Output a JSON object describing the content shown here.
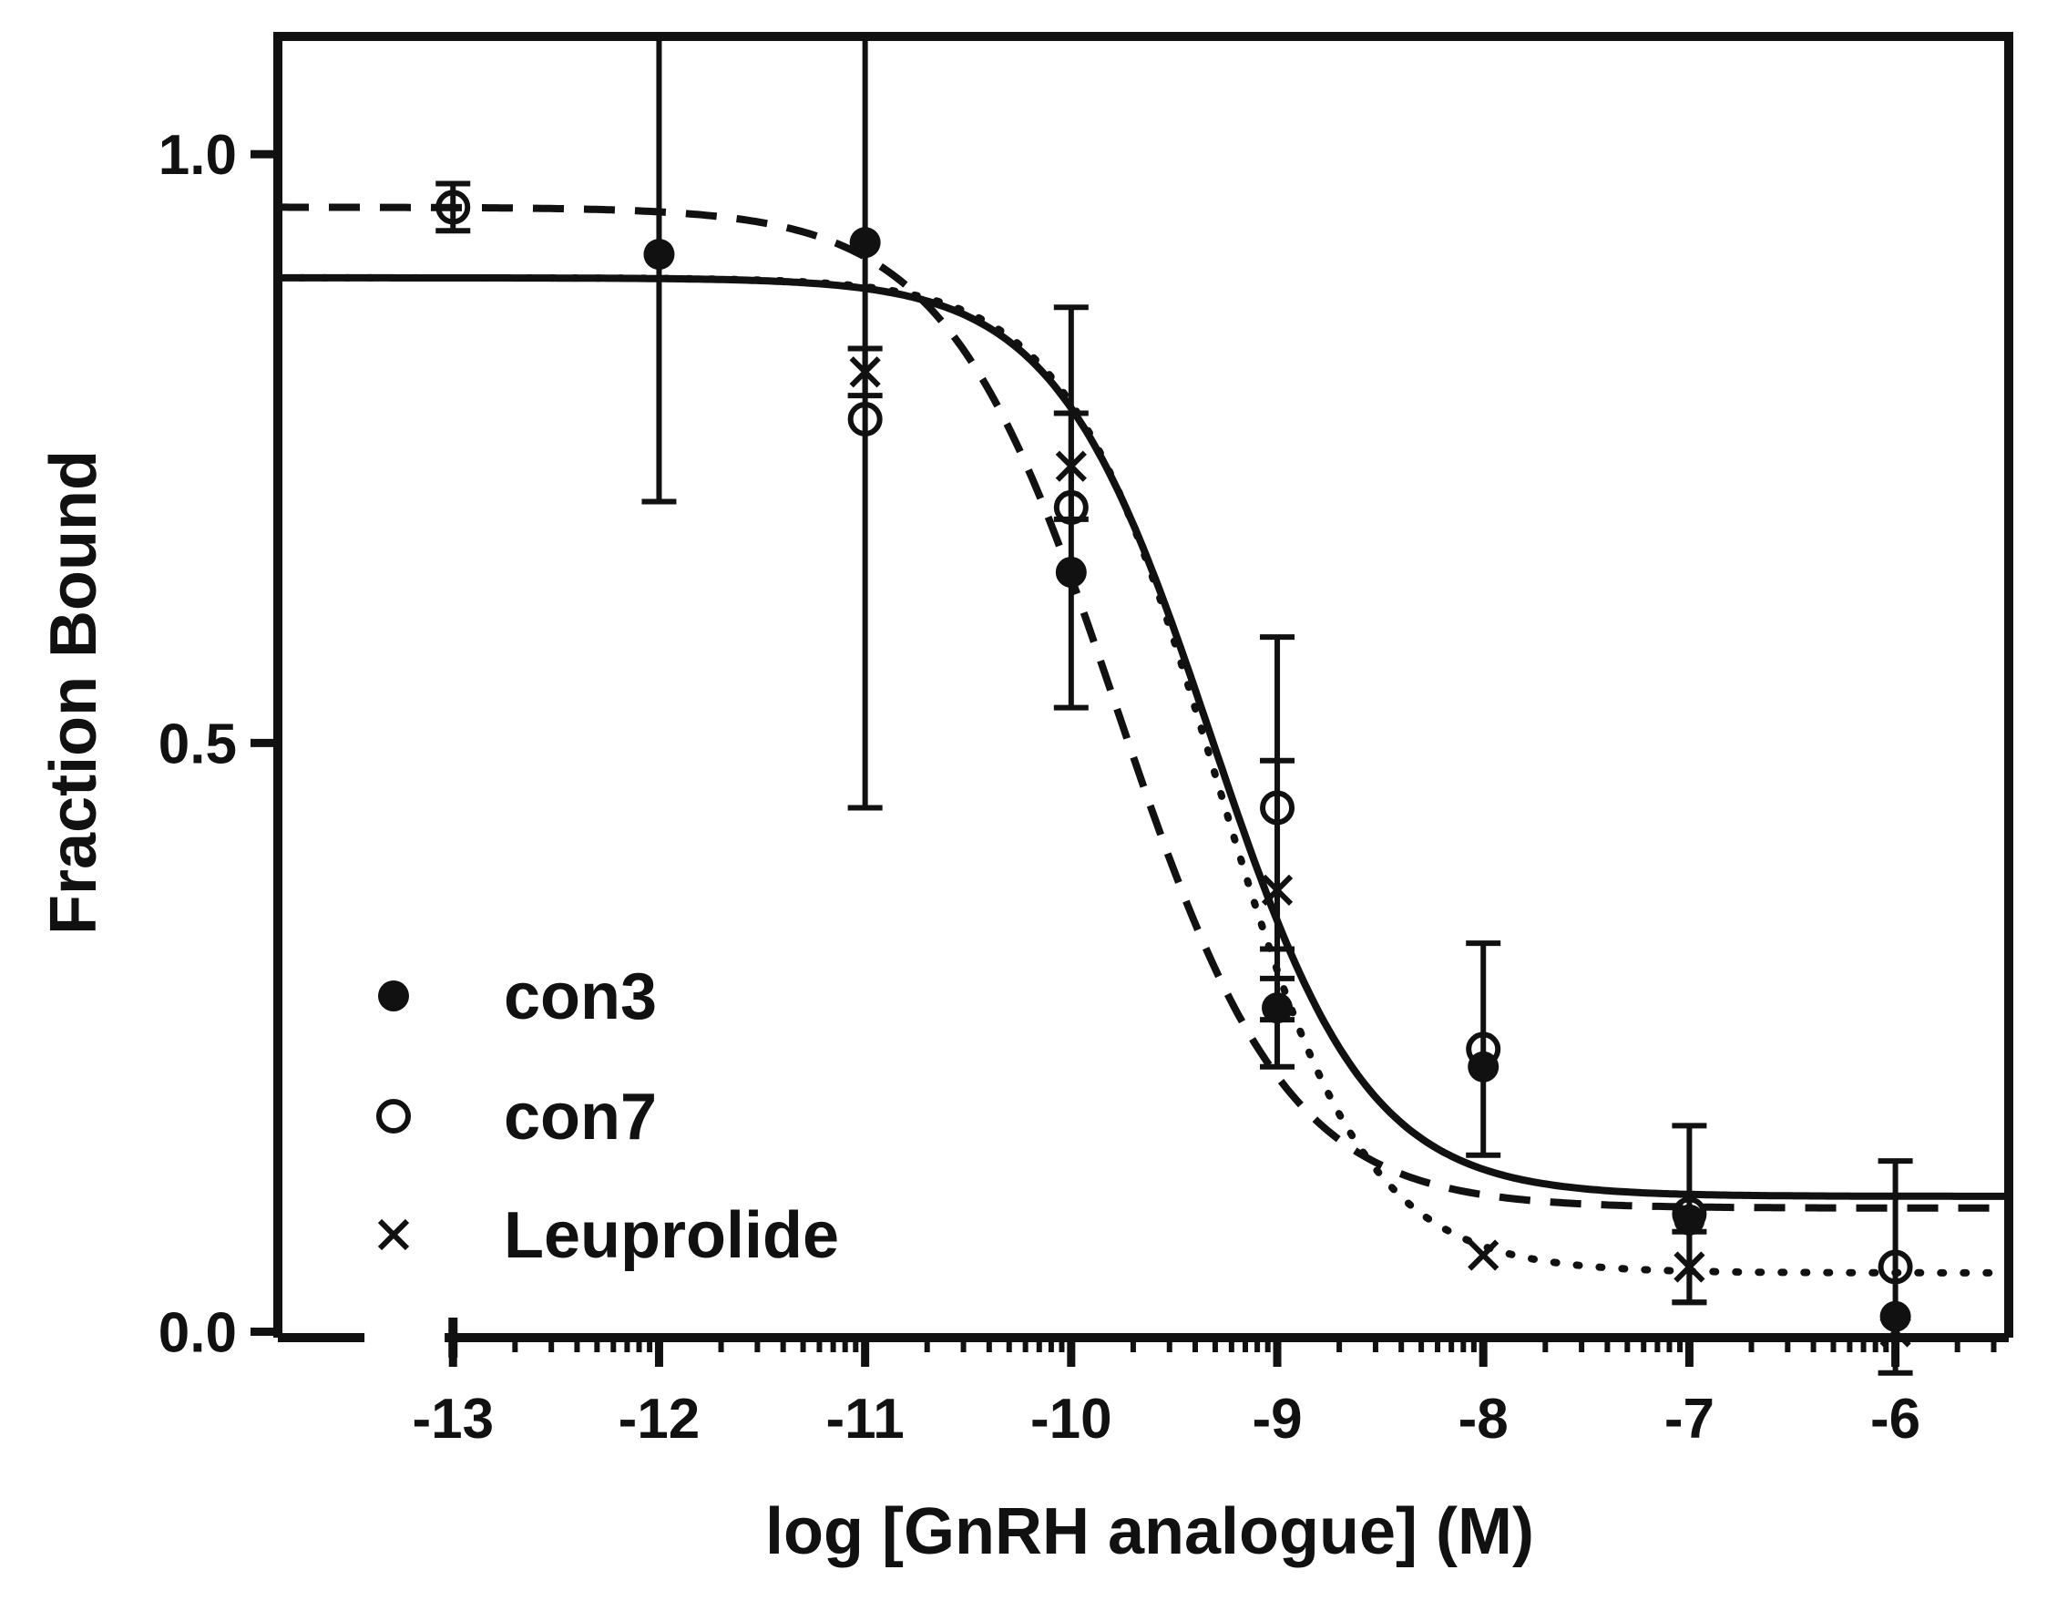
{
  "chart_data": {
    "type": "scatter",
    "title": "",
    "xlabel": "log [GnRH analogue] (M)",
    "ylabel": "Fraction Bound",
    "xlim": [
      -13.85,
      -5.45
    ],
    "ylim": [
      -0.005,
      1.1
    ],
    "x_axis_break_at": -13.35,
    "x_ticks": [
      -13,
      -12,
      -11,
      -10,
      -9,
      -8,
      -7,
      -6
    ],
    "x_tick_labels": [
      "-13",
      "-12",
      "-11",
      "-10",
      "-9",
      "-8",
      "-7",
      "-6"
    ],
    "y_ticks": [
      0.0,
      0.5,
      1.0
    ],
    "y_tick_labels": [
      "0.0",
      "0.5",
      "1.0"
    ],
    "legend_position": "bottom-left",
    "grid": false,
    "series": [
      {
        "name": "con3",
        "marker": "filled-circle",
        "line_style": "dashed",
        "color": "#111111",
        "fit": {
          "top": 0.955,
          "bottom": 0.105,
          "log_ic50": -9.78,
          "hill": 1.05
        },
        "points": [
          {
            "x": -12,
            "y": 0.915,
            "err": 0.21
          },
          {
            "x": -11,
            "y": 0.925,
            "err": 0.0
          },
          {
            "x": -10,
            "y": 0.645,
            "err": 0.0
          },
          {
            "x": -9,
            "y": 0.275,
            "err": 0.05
          },
          {
            "x": -8,
            "y": 0.225,
            "err": 0.0
          },
          {
            "x": -7,
            "y": 0.095,
            "err": 0.0
          },
          {
            "x": -6,
            "y": 0.013,
            "err": 0.0
          }
        ]
      },
      {
        "name": "con7",
        "marker": "open-circle",
        "line_style": "solid",
        "color": "#111111",
        "fit": {
          "top": 0.895,
          "bottom": 0.115,
          "log_ic50": -9.32,
          "hill": 1.15
        },
        "points": [
          {
            "x": -13,
            "y": 0.955,
            "err": 0.02
          },
          {
            "x": -11,
            "y": 0.775,
            "err": 0.33
          },
          {
            "x": -10,
            "y": 0.7,
            "err": 0.17
          },
          {
            "x": -9,
            "y": 0.445,
            "err": 0.145
          },
          {
            "x": -8,
            "y": 0.24,
            "err": 0.09
          },
          {
            "x": -7,
            "y": 0.1,
            "err": 0.075
          },
          {
            "x": -6,
            "y": 0.055,
            "err": 0.09
          }
        ]
      },
      {
        "name": "Leuprolide",
        "marker": "x",
        "line_style": "dotted",
        "color": "#111111",
        "fit": {
          "top": 0.895,
          "bottom": 0.05,
          "log_ic50": -9.3,
          "hill": 1.2
        },
        "points": [
          {
            "x": -11,
            "y": 0.815,
            "err": 0.02
          },
          {
            "x": -10,
            "y": 0.735,
            "err": 0.045
          },
          {
            "x": -9,
            "y": 0.375,
            "err": 0.11
          },
          {
            "x": -8,
            "y": 0.065,
            "err": 0.0
          },
          {
            "x": -7,
            "y": 0.055,
            "err": 0.03
          },
          {
            "x": -6,
            "y": 0.0,
            "err": 0.0
          }
        ]
      }
    ]
  }
}
